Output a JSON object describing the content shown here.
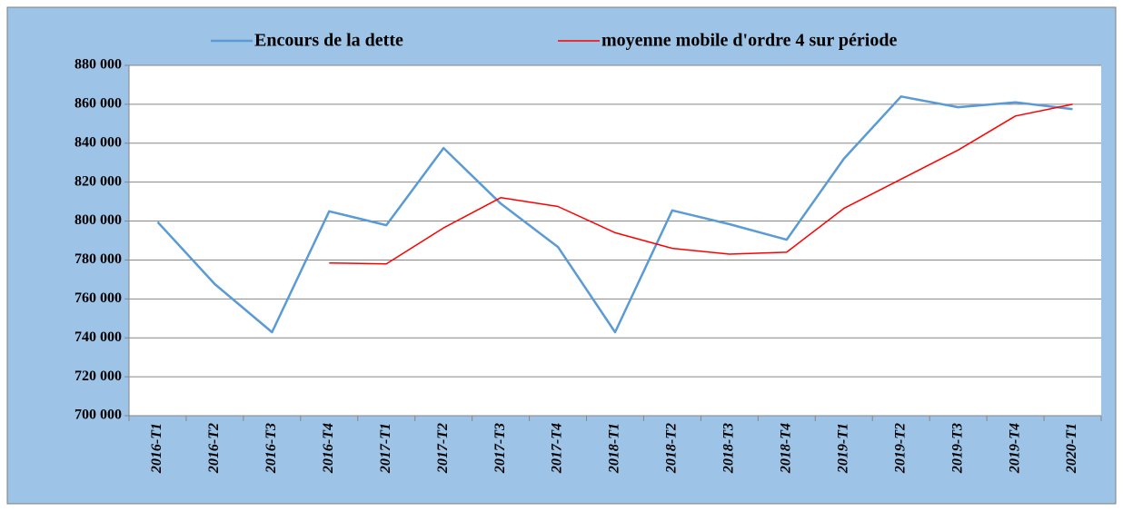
{
  "chart_data": {
    "type": "line",
    "categories": [
      "2016-T1",
      "2016-T2",
      "2016-T3",
      "2016-T4",
      "2017-T1",
      "2017-T2",
      "2017-T3",
      "2017-T4",
      "2018-T1",
      "2018-T2",
      "2018-T3",
      "2018-T4",
      "2019-T1",
      "2019-T2",
      "2019-T3",
      "2019-T4",
      "2020-T1"
    ],
    "series": [
      {
        "name": "Encours de la dette",
        "color": "#5b9bd5",
        "values": [
          799500,
          767600,
          742900,
          805000,
          797900,
          837500,
          809000,
          786700,
          742900,
          805500,
          798400,
          790400,
          832000,
          864000,
          858500,
          861000,
          857500
        ]
      },
      {
        "name": "moyenne mobile d'ordre 4 sur période",
        "color": "#ff0000",
        "values": [
          null,
          null,
          null,
          778500,
          778000,
          796500,
          812000,
          807500,
          794000,
          786000,
          783000,
          784000,
          806500,
          821500,
          836500,
          854000,
          860000
        ]
      }
    ],
    "ylim": [
      700000,
      880000
    ],
    "yticks": [
      {
        "value": 700000,
        "label": "700 000"
      },
      {
        "value": 720000,
        "label": "720 000"
      },
      {
        "value": 740000,
        "label": "740 000"
      },
      {
        "value": 760000,
        "label": "760 000"
      },
      {
        "value": 780000,
        "label": "780 000"
      },
      {
        "value": 800000,
        "label": "800 000"
      },
      {
        "value": 820000,
        "label": "820 000"
      },
      {
        "value": 840000,
        "label": "840 000"
      },
      {
        "value": 860000,
        "label": "860 000"
      },
      {
        "value": 880000,
        "label": "880 000"
      }
    ],
    "grid": true
  }
}
